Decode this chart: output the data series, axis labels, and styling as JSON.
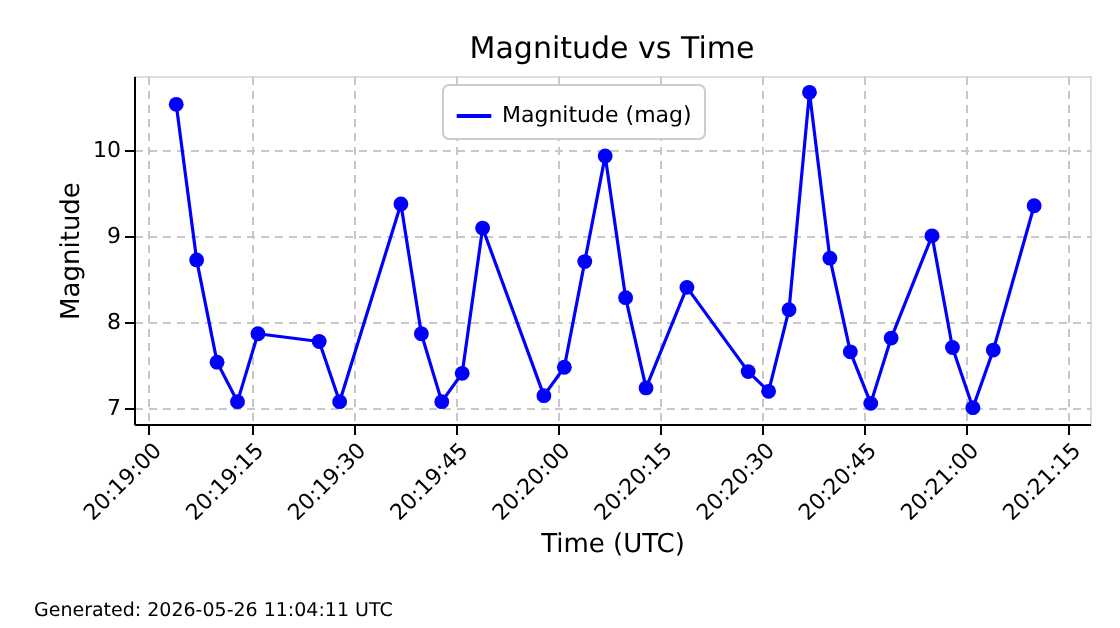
{
  "chart_data": {
    "type": "line",
    "title": "Magnitude vs Time",
    "xlabel": "Time (UTC)",
    "ylabel": "Magnitude",
    "annotations": [
      "Generated: 2026-05-26 11:04:11 UTC"
    ],
    "x": [
      "2026-05-26T20:19:04",
      "2026-05-26T20:19:07",
      "2026-05-26T20:19:10",
      "2026-05-26T20:19:13",
      "2026-05-26T20:19:16",
      "2026-05-26T20:19:25",
      "2026-05-26T20:19:28",
      "2026-05-26T20:19:37",
      "2026-05-26T20:19:40",
      "2026-05-26T20:19:43",
      "2026-05-26T20:19:46",
      "2026-05-26T20:19:49",
      "2026-05-26T20:19:58",
      "2026-05-26T20:20:01",
      "2026-05-26T20:20:04",
      "2026-05-26T20:20:07",
      "2026-05-26T20:20:10",
      "2026-05-26T20:20:13",
      "2026-05-26T20:20:19",
      "2026-05-26T20:20:28",
      "2026-05-26T20:20:31",
      "2026-05-26T20:20:34",
      "2026-05-26T20:20:37",
      "2026-05-26T20:20:40",
      "2026-05-26T20:20:43",
      "2026-05-26T20:20:46",
      "2026-05-26T20:20:49",
      "2026-05-26T20:20:55",
      "2026-05-26T20:20:58",
      "2026-05-26T20:21:01",
      "2026-05-26T20:21:04",
      "2026-05-26T20:21:10"
    ],
    "series": [
      {
        "name": "Magnitude (mag)",
        "color": "#0000ff",
        "values": [
          10.53,
          8.72,
          7.53,
          7.07,
          7.86,
          7.77,
          7.07,
          9.37,
          7.86,
          7.07,
          7.4,
          9.09,
          7.14,
          7.47,
          8.7,
          9.93,
          8.28,
          7.23,
          8.4,
          7.42,
          7.19,
          8.14,
          10.67,
          8.74,
          7.65,
          7.05,
          7.81,
          9.0,
          7.7,
          7.0,
          7.67,
          9.35
        ]
      }
    ],
    "xlim": [
      "2026-05-26T20:18:57.8",
      "2026-05-26T20:21:18.2"
    ],
    "xticks": [
      {
        "value": "2026-05-26T20:19:00",
        "label": "20:19:00"
      },
      {
        "value": "2026-05-26T20:19:15",
        "label": "20:19:15"
      },
      {
        "value": "2026-05-26T20:19:30",
        "label": "20:19:30"
      },
      {
        "value": "2026-05-26T20:19:45",
        "label": "20:19:45"
      },
      {
        "value": "2026-05-26T20:20:00",
        "label": "20:20:00"
      },
      {
        "value": "2026-05-26T20:20:15",
        "label": "20:20:15"
      },
      {
        "value": "2026-05-26T20:20:30",
        "label": "20:20:30"
      },
      {
        "value": "2026-05-26T20:20:45",
        "label": "20:20:45"
      },
      {
        "value": "2026-05-26T20:21:00",
        "label": "20:21:00"
      },
      {
        "value": "2026-05-26T20:21:15",
        "label": "20:21:15"
      }
    ],
    "ylim": [
      6.81,
      10.86
    ],
    "yticks": [
      7,
      8,
      9,
      10
    ],
    "grid": true,
    "legend": "top",
    "marker": "circle",
    "line_style": "solid"
  }
}
